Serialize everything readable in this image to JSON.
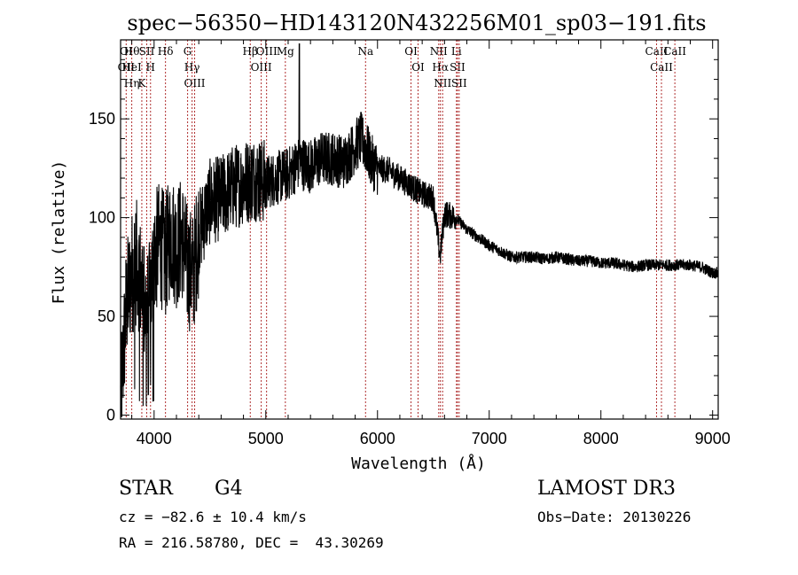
{
  "chart_data": {
    "type": "line",
    "title": "spec−56350−HD143120N432256M01_sp03−191.fits",
    "xlabel": "Wavelength (Å)",
    "ylabel": "Flux (relative)",
    "xlim": [
      3700,
      9050
    ],
    "ylim": [
      -2,
      190
    ],
    "xticks": [
      4000,
      5000,
      6000,
      7000,
      8000,
      9000
    ],
    "yticks": [
      0,
      50,
      100,
      150
    ],
    "grid": false,
    "series": [
      {
        "name": "spectrum",
        "x": [
          3700,
          3750,
          3800,
          3850,
          3900,
          3950,
          4000,
          4050,
          4100,
          4150,
          4200,
          4250,
          4300,
          4350,
          4400,
          4450,
          4500,
          4600,
          4700,
          4800,
          4900,
          5000,
          5100,
          5200,
          5300,
          5400,
          5500,
          5600,
          5700,
          5800,
          5850,
          5900,
          5950,
          6000,
          6100,
          6200,
          6300,
          6400,
          6500,
          6560,
          6600,
          6700,
          6800,
          6900,
          7000,
          7100,
          7200,
          7300,
          7400,
          7500,
          7600,
          7700,
          7800,
          7900,
          8000,
          8100,
          8200,
          8300,
          8400,
          8500,
          8600,
          8700,
          8800,
          8900,
          9000,
          9050
        ],
        "y": [
          5,
          55,
          72,
          78,
          60,
          52,
          80,
          88,
          80,
          92,
          85,
          90,
          75,
          72,
          92,
          100,
          108,
          110,
          115,
          118,
          120,
          118,
          120,
          122,
          128,
          126,
          130,
          130,
          128,
          136,
          140,
          135,
          128,
          125,
          124,
          120,
          116,
          112,
          110,
          80,
          102,
          100,
          94,
          90,
          86,
          83,
          80,
          80,
          80,
          79,
          80,
          79,
          78,
          78,
          77,
          77,
          76,
          75,
          76,
          76,
          76,
          76,
          76,
          75,
          72,
          72
        ]
      }
    ],
    "line_marker_groups": [
      {
        "x": 3750,
        "labels": [
          "OI",
          "OII"
        ]
      },
      {
        "x": 3800,
        "labels": [
          "Hθ",
          "HeI",
          "Hη"
        ]
      },
      {
        "x": 3890,
        "labels": [
          "K"
        ]
      },
      {
        "x": 3934,
        "labels": [
          "SII"
        ]
      },
      {
        "x": 3968,
        "labels": [
          "H"
        ]
      },
      {
        "x": 4102,
        "labels": [
          "Hδ"
        ]
      },
      {
        "x": 4300,
        "labels": [
          "G"
        ]
      },
      {
        "x": 4340,
        "labels": [
          "Hγ"
        ]
      },
      {
        "x": 4363,
        "labels": [
          "OIII"
        ]
      },
      {
        "x": 4861,
        "labels": [
          "Hβ"
        ]
      },
      {
        "x": 4959,
        "labels": [
          "OIII"
        ]
      },
      {
        "x": 5007,
        "labels": [
          "OIII"
        ]
      },
      {
        "x": 5175,
        "labels": [
          "Mg"
        ]
      },
      {
        "x": 5893,
        "labels": [
          "Na"
        ]
      },
      {
        "x": 6300,
        "labels": [
          "OI"
        ]
      },
      {
        "x": 6363,
        "labels": [
          "OI"
        ]
      },
      {
        "x": 6548,
        "labels": [
          "NII"
        ]
      },
      {
        "x": 6563,
        "labels": [
          "Hα"
        ]
      },
      {
        "x": 6583,
        "labels": [
          "NII"
        ]
      },
      {
        "x": 6707,
        "labels": [
          "Li"
        ]
      },
      {
        "x": 6716,
        "labels": [
          "SII"
        ]
      },
      {
        "x": 6731,
        "labels": [
          "SII"
        ]
      },
      {
        "x": 8498,
        "labels": [
          "CaII"
        ]
      },
      {
        "x": 8542,
        "labels": [
          "CaII"
        ]
      },
      {
        "x": 8662,
        "labels": [
          "CaII"
        ]
      }
    ]
  },
  "info": {
    "object_class": "STAR",
    "subclass": "G4",
    "survey": "LAMOST DR3",
    "redshift_line": "cz = −82.6 ± 10.4 km/s",
    "obs_date_line": "Obs−Date: 20130226",
    "coords_line": "RA = 216.58780, DEC =  43.30269"
  },
  "colors": {
    "spectrum": "#000000",
    "line_marker": "#b03030",
    "axis": "#000000"
  }
}
